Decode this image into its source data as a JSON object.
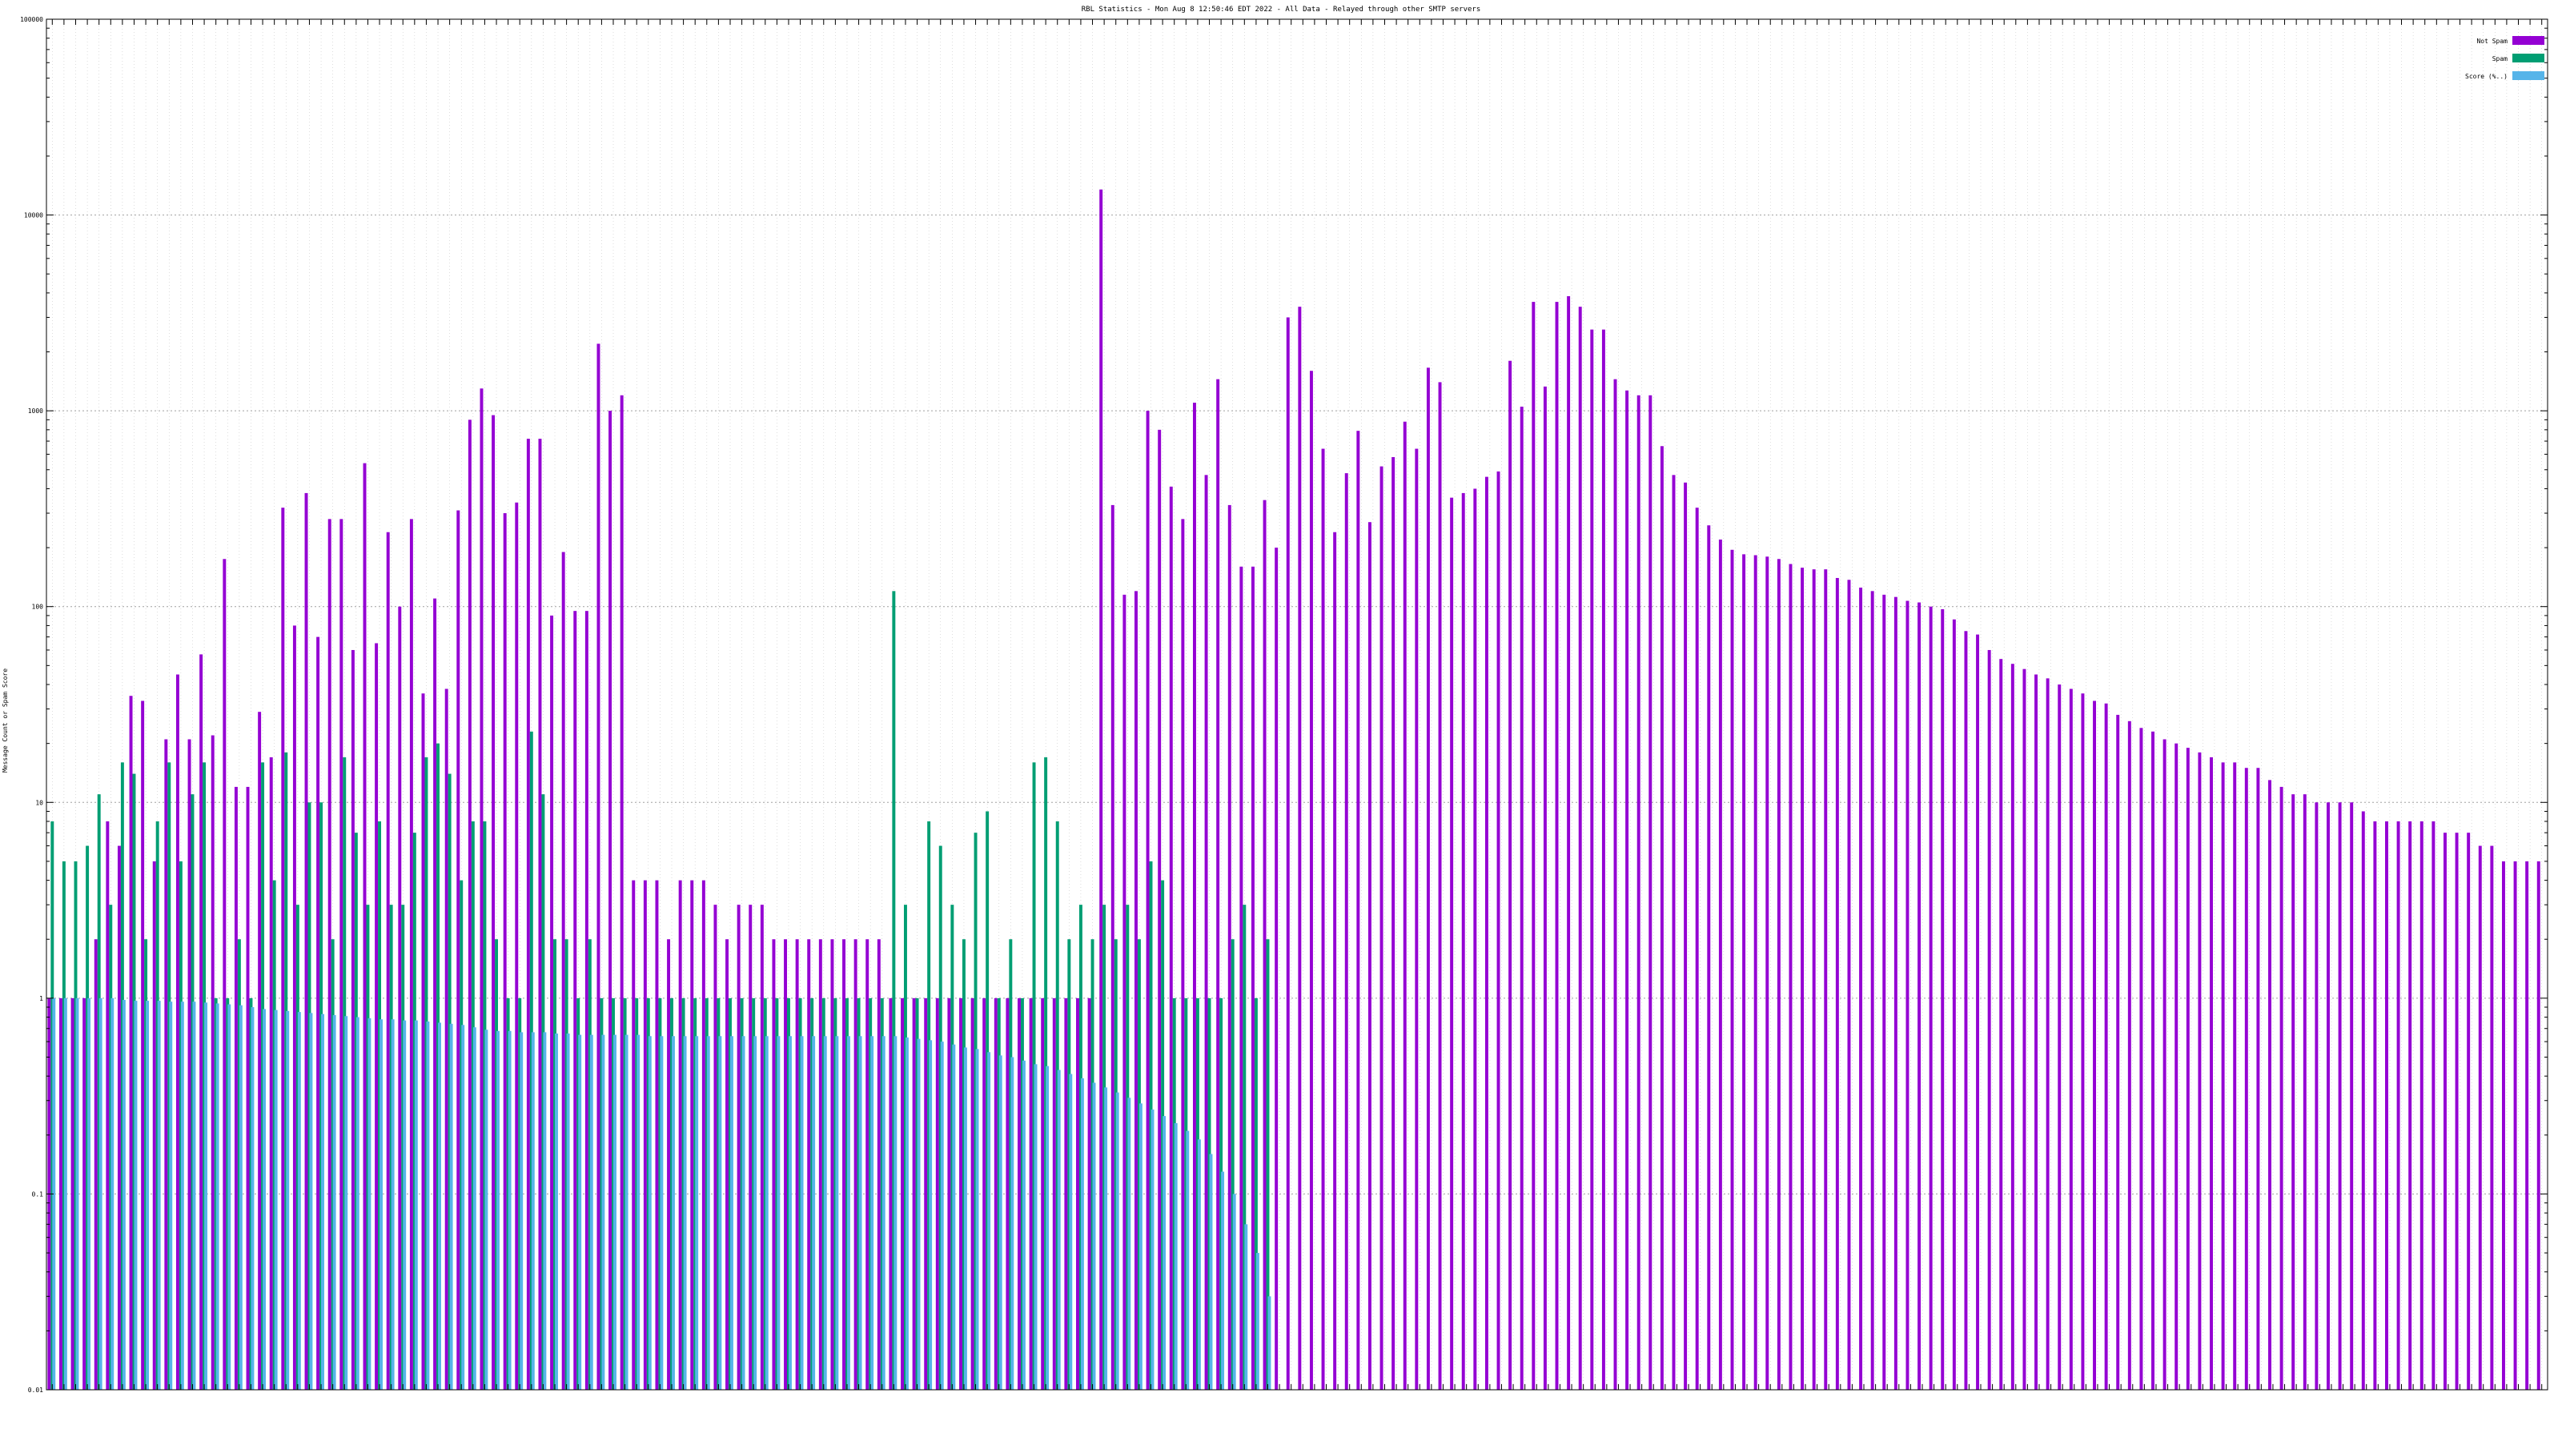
{
  "chart_data": {
    "type": "bar",
    "title": "RBL Statistics - Mon Aug  8 12:50:46 EDT 2022 - All Data - Relayed through other SMTP servers",
    "ylabel": "Message Count or Spam Score",
    "xlabel": "",
    "yscale": "log",
    "ylim": [
      0.01,
      100000
    ],
    "ytick_labels": [
      "0.01",
      "0.1",
      "1",
      "10",
      "100",
      "1000",
      "10000",
      "100000"
    ],
    "grid": true,
    "legend_position": "top-right",
    "colors": {
      "not_spam": "#9400d3",
      "spam": "#009e73",
      "score": "#56b4e9"
    },
    "legend": [
      "Not Spam",
      "Spam",
      "Score (%..)"
    ],
    "series": [
      {
        "name": "Not Spam",
        "values": [
          1,
          1,
          1,
          1,
          2,
          8,
          6,
          35,
          33,
          5,
          21,
          45,
          21,
          57,
          22,
          175,
          12,
          12,
          29,
          17,
          320,
          80,
          380,
          70,
          280,
          280,
          60,
          540,
          65,
          240,
          100,
          280,
          36,
          110,
          38,
          310,
          900,
          1300,
          950,
          300,
          340,
          720,
          720,
          90,
          190,
          95,
          95,
          2200,
          1000,
          1200,
          4,
          4,
          4,
          2,
          4,
          4,
          4,
          3,
          2,
          3,
          3,
          3,
          2,
          2,
          2,
          2,
          2,
          2,
          2,
          2,
          2,
          2,
          1,
          1,
          1,
          1,
          1,
          1,
          1,
          1,
          1,
          1,
          1,
          1,
          1,
          1,
          1,
          1,
          1,
          1,
          13500,
          330,
          115,
          120,
          1000,
          800,
          410,
          280,
          1100,
          470,
          1450,
          330,
          160,
          160,
          350,
          200,
          3000,
          3400,
          1600,
          640,
          240,
          480,
          790,
          270,
          520,
          580,
          880,
          640,
          1660,
          1400,
          360,
          380,
          400,
          460,
          490,
          1800,
          1050,
          3600,
          1330,
          3600,
          3850,
          3400,
          2600,
          2600,
          1450,
          1270,
          1200,
          1200,
          660,
          470,
          430,
          320,
          260,
          220,
          195,
          185,
          183,
          180,
          175,
          165,
          158,
          155,
          155,
          140,
          137,
          125,
          120,
          115,
          112,
          107,
          105,
          100,
          97,
          86,
          75,
          72,
          60,
          54,
          51,
          48,
          45,
          43,
          40,
          38,
          36,
          33,
          32,
          28,
          26,
          24,
          23,
          21,
          20,
          19,
          18,
          17,
          16,
          16,
          15,
          15,
          13,
          12,
          11,
          11,
          10,
          10,
          10,
          10,
          9,
          8,
          8,
          8,
          8,
          8,
          8,
          7,
          7,
          7,
          6,
          6,
          5,
          5,
          5,
          5
        ]
      },
      {
        "name": "Spam",
        "values": [
          8,
          5,
          5,
          6,
          11,
          3,
          16,
          14,
          2,
          8,
          16,
          5,
          11,
          16,
          1,
          1,
          2,
          1,
          16,
          4,
          18,
          3,
          10,
          10,
          2,
          17,
          7,
          3,
          8,
          3,
          3,
          7,
          17,
          20,
          14,
          4,
          8,
          8,
          2,
          1,
          1,
          23,
          11,
          2,
          2,
          1,
          2,
          1,
          1,
          1,
          1,
          1,
          1,
          1,
          1,
          1,
          1,
          1,
          1,
          1,
          1,
          1,
          1,
          1,
          1,
          1,
          1,
          1,
          1,
          1,
          1,
          1,
          120,
          3,
          1,
          8,
          6,
          3,
          2,
          7,
          9,
          1,
          2,
          1,
          16,
          17,
          8,
          2,
          3,
          2,
          3,
          2,
          3,
          2,
          5,
          4,
          1,
          1,
          1,
          1,
          1,
          2,
          3,
          1,
          2
        ]
      },
      {
        "name": "Score (%..)",
        "values": [
          1,
          1,
          1,
          1,
          1,
          1,
          0.98,
          0.97,
          0.97,
          0.97,
          0.96,
          0.96,
          0.96,
          0.95,
          0.94,
          0.93,
          0.92,
          0.9,
          0.88,
          0.87,
          0.86,
          0.85,
          0.84,
          0.83,
          0.82,
          0.81,
          0.8,
          0.79,
          0.78,
          0.78,
          0.77,
          0.77,
          0.76,
          0.75,
          0.74,
          0.73,
          0.71,
          0.69,
          0.68,
          0.68,
          0.67,
          0.67,
          0.67,
          0.66,
          0.66,
          0.65,
          0.65,
          0.65,
          0.65,
          0.65,
          0.65,
          0.64,
          0.64,
          0.64,
          0.64,
          0.64,
          0.64,
          0.64,
          0.64,
          0.64,
          0.64,
          0.64,
          0.64,
          0.64,
          0.64,
          0.64,
          0.64,
          0.64,
          0.64,
          0.64,
          0.64,
          0.64,
          0.64,
          0.63,
          0.62,
          0.61,
          0.6,
          0.58,
          0.56,
          0.55,
          0.53,
          0.51,
          0.5,
          0.48,
          0.46,
          0.45,
          0.43,
          0.41,
          0.39,
          0.37,
          0.35,
          0.33,
          0.31,
          0.29,
          0.27,
          0.25,
          0.23,
          0.21,
          0.19,
          0.16,
          0.13,
          0.1,
          0.07,
          0.05,
          0.03
        ]
      }
    ]
  }
}
